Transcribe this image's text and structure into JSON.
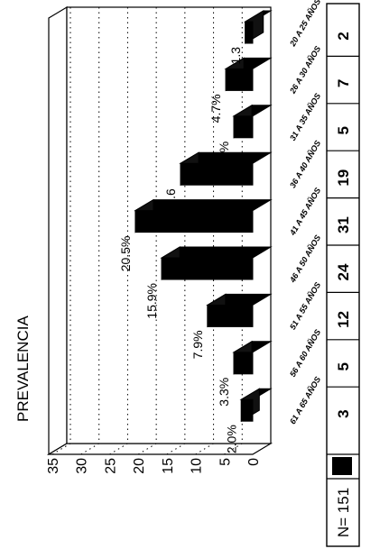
{
  "chart_data": {
    "type": "bar",
    "title": "PREVALENCIA",
    "orientation": "rotated-90-clockwise",
    "three_d": true,
    "categories": [
      "20 A 25 AÑOS",
      "26 A 30 AÑOS",
      "31 A 35 AÑOS",
      "36 A 40 AÑOS",
      "41 A 45 AÑOS",
      "46 A 50 AÑOS",
      "51 A 55 AÑOS",
      "56 A 60 AÑOS",
      "61 A 65 AÑOS"
    ],
    "values": [
      1.3,
      4.7,
      3.3,
      12.6,
      20.5,
      15.9,
      7.9,
      3.3,
      2.0
    ],
    "value_labels": [
      "1.3",
      "4.7%",
      "3.3%",
      "12.6",
      "20.5%",
      "15.9%",
      "7.9%",
      "3.3%",
      "2.0%"
    ],
    "y_ticks": [
      "0",
      "5",
      "10",
      "15",
      "20",
      "25",
      "30",
      "35"
    ],
    "ylim": [
      0,
      35
    ],
    "grid": true,
    "bar_color": "#000000",
    "table": {
      "n_label": "N= 151",
      "counts": [
        "2",
        "7",
        "5",
        "19",
        "31",
        "24",
        "12",
        "5",
        "3"
      ]
    }
  }
}
